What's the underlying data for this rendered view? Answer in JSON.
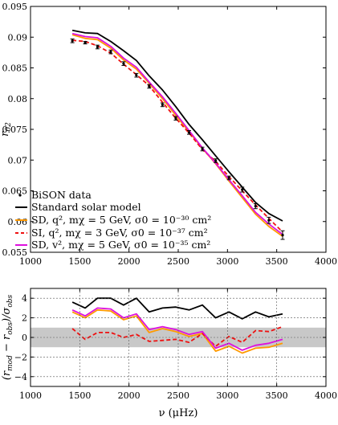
{
  "chart_data": [
    {
      "type": "line",
      "ylabel": "r02",
      "xlim": [
        1000,
        4000
      ],
      "ylim": [
        0.055,
        0.095
      ],
      "x_ticks": [
        "1000",
        "1500",
        "2000",
        "2500",
        "3000",
        "3500",
        "4000"
      ],
      "y_ticks": [
        "0.055",
        "0.06",
        "0.065",
        "0.07",
        "0.075",
        "0.08",
        "0.085",
        "0.09",
        "0.095"
      ],
      "grid": false,
      "legend_position": "bottom-left",
      "observations": {
        "name": "BiSON data",
        "x": [
          1425,
          1555,
          1680,
          1815,
          1945,
          2075,
          2205,
          2340,
          2475,
          2610,
          2745,
          2880,
          3015,
          3150,
          3285,
          3420,
          3560
        ],
        "y": [
          0.0894,
          0.0891,
          0.0884,
          0.0876,
          0.0857,
          0.0838,
          0.082,
          0.079,
          0.0768,
          0.0745,
          0.0718,
          0.0699,
          0.0671,
          0.0652,
          0.0625,
          0.0602,
          0.0578
        ],
        "err": [
          0.0003,
          0.0002,
          0.0003,
          0.0003,
          0.0003,
          0.0003,
          0.0003,
          0.0003,
          0.0003,
          0.0003,
          0.0003,
          0.0003,
          0.0003,
          0.0004,
          0.0004,
          0.0005,
          0.0007
        ],
        "color": "#000000"
      },
      "series": [
        {
          "name": "Standard solar model",
          "color": "#000000",
          "dash": "solid",
          "x": [
            1425,
            1555,
            1680,
            1815,
            1945,
            2075,
            2205,
            2340,
            2475,
            2610,
            2745,
            2880,
            3015,
            3150,
            3285,
            3420,
            3560
          ],
          "y": [
            0.0911,
            0.0907,
            0.0906,
            0.0893,
            0.0878,
            0.0862,
            0.0837,
            0.0814,
            0.0787,
            0.0758,
            0.0733,
            0.0707,
            0.0681,
            0.0656,
            0.0631,
            0.0613,
            0.0601
          ]
        },
        {
          "name": "SD, q², mχ = 5 GeV, σ0 = 10⁻³⁰ cm²",
          "color": "#ff9900",
          "dash": "solid",
          "x": [
            1425,
            1555,
            1680,
            1815,
            1945,
            2075,
            2205,
            2340,
            2475,
            2610,
            2745,
            2880,
            3015,
            3150,
            3285,
            3420,
            3560
          ],
          "y": [
            0.0904,
            0.0898,
            0.0896,
            0.0882,
            0.0863,
            0.0848,
            0.0825,
            0.08,
            0.0773,
            0.0746,
            0.0719,
            0.0694,
            0.0666,
            0.0639,
            0.0612,
            0.0592,
            0.0576
          ]
        },
        {
          "name": "SI, q², mχ = 3 GeV, σ0 = 10⁻³⁷ cm²",
          "color": "#ee1111",
          "dash": "dashed",
          "x": [
            1425,
            1555,
            1680,
            1815,
            1945,
            2075,
            2205,
            2340,
            2475,
            2610,
            2745,
            2880,
            3015,
            3150,
            3285,
            3420,
            3560
          ],
          "y": [
            0.0895,
            0.0893,
            0.0886,
            0.0874,
            0.0856,
            0.0839,
            0.0821,
            0.0794,
            0.0768,
            0.0744,
            0.0717,
            0.0698,
            0.0673,
            0.065,
            0.0627,
            0.0605,
            0.0583
          ]
        },
        {
          "name": "SD, v², mχ = 5 GeV, σ0 = 10⁻³⁵ cm²",
          "color": "#dd11dd",
          "dash": "solid",
          "x": [
            1425,
            1555,
            1680,
            1815,
            1945,
            2075,
            2205,
            2340,
            2475,
            2610,
            2745,
            2880,
            3015,
            3150,
            3285,
            3420,
            3560
          ],
          "y": [
            0.0906,
            0.0901,
            0.0899,
            0.0885,
            0.0866,
            0.0851,
            0.0827,
            0.0803,
            0.0776,
            0.0748,
            0.072,
            0.0695,
            0.0668,
            0.0642,
            0.0615,
            0.0596,
            0.0579
          ]
        }
      ]
    },
    {
      "type": "line",
      "ylabel": "(r_mod − r_obs)/σ_obs",
      "xlabel": "ν (μHz)",
      "xlim": [
        1000,
        4000
      ],
      "ylim": [
        -5,
        5
      ],
      "x_ticks": [
        "1000",
        "1500",
        "2000",
        "2500",
        "3000",
        "3500",
        "4000"
      ],
      "y_ticks": [
        "−4",
        "−2",
        "0",
        "2",
        "4"
      ],
      "grid": true,
      "band": {
        "from": -1,
        "to": 1,
        "color": "#c8c8c8"
      },
      "series": [
        {
          "name": "Standard solar model",
          "color": "#000000",
          "dash": "solid",
          "x": [
            1425,
            1555,
            1680,
            1815,
            1945,
            2075,
            2205,
            2340,
            2475,
            2610,
            2745,
            2880,
            3015,
            3150,
            3285,
            3420,
            3560
          ],
          "y": [
            3.6,
            3.0,
            4.0,
            4.0,
            3.3,
            4.0,
            2.6,
            3.0,
            3.1,
            2.8,
            3.3,
            2.0,
            2.6,
            1.9,
            2.6,
            2.1,
            2.4
          ]
        },
        {
          "name": "SD, q², mχ = 5 GeV, σ0 = 10⁻³⁰ cm²",
          "color": "#ff9900",
          "dash": "solid",
          "x": [
            1425,
            1555,
            1680,
            1815,
            1945,
            2075,
            2205,
            2340,
            2475,
            2610,
            2745,
            2880,
            3015,
            3150,
            3285,
            3420,
            3560
          ],
          "y": [
            2.6,
            2.0,
            2.8,
            2.7,
            1.8,
            2.2,
            0.5,
            0.9,
            0.6,
            0.1,
            0.4,
            -1.4,
            -0.9,
            -1.6,
            -1.1,
            -1.0,
            -0.6
          ]
        },
        {
          "name": "SI, q², mχ = 3 GeV, σ0 = 10⁻³⁷ cm²",
          "color": "#ee1111",
          "dash": "dashed",
          "x": [
            1425,
            1555,
            1680,
            1815,
            1945,
            2075,
            2205,
            2340,
            2475,
            2610,
            2745,
            2880,
            3015,
            3150,
            3285,
            3420,
            3560
          ],
          "y": [
            0.9,
            -0.2,
            0.5,
            0.5,
            0.0,
            0.3,
            -0.4,
            -0.3,
            -0.2,
            -0.5,
            0.4,
            -0.9,
            0.1,
            -0.5,
            0.7,
            0.6,
            1.1
          ]
        },
        {
          "name": "SD, v², mχ = 5 GeV, σ0 = 10⁻³⁵ cm²",
          "color": "#dd11dd",
          "dash": "solid",
          "x": [
            1425,
            1555,
            1680,
            1815,
            1945,
            2075,
            2205,
            2340,
            2475,
            2610,
            2745,
            2880,
            3015,
            3150,
            3285,
            3420,
            3560
          ],
          "y": [
            2.8,
            2.2,
            3.0,
            2.9,
            2.0,
            2.4,
            0.8,
            1.1,
            0.8,
            0.3,
            0.6,
            -1.1,
            -0.6,
            -1.3,
            -0.8,
            -0.6,
            -0.2
          ]
        }
      ]
    }
  ]
}
